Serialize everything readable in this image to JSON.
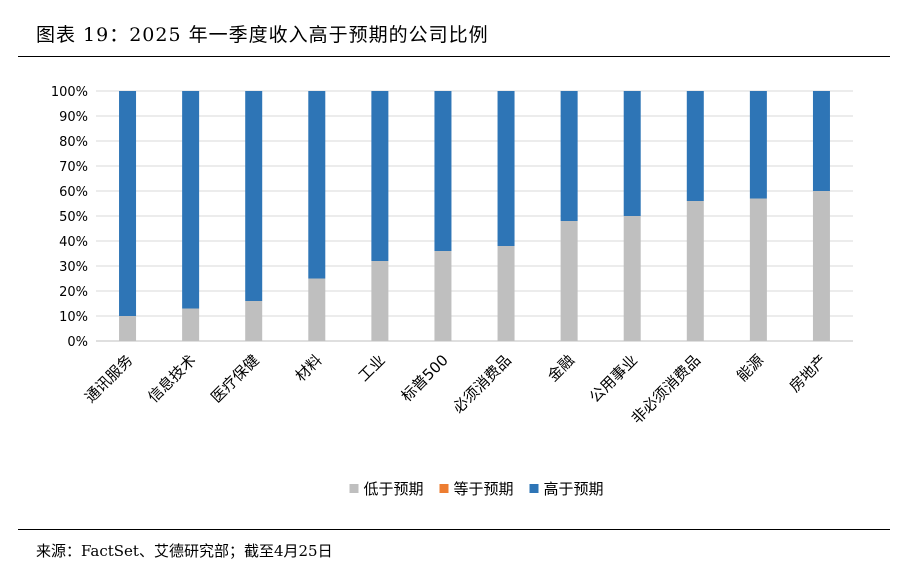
{
  "title": "图表 19：2025 年一季度收入高于预期的公司比例",
  "source": "来源：FactSet、艾德研究部；截至4月25日",
  "chart_data": {
    "type": "bar",
    "stacked": true,
    "percent_stacked": true,
    "categories": [
      "通讯服务",
      "信息技术",
      "医疗保健",
      "材料",
      "工业",
      "标普500",
      "必须消费品",
      "金融",
      "公用事业",
      "非必须消费品",
      "能源",
      "房地产"
    ],
    "series": [
      {
        "name": "低于预期",
        "color": "#bfbfbf",
        "values": [
          10,
          13,
          16,
          25,
          32,
          36,
          38,
          48,
          50,
          56,
          57,
          60
        ]
      },
      {
        "name": "等于预期",
        "color": "#ed7d31",
        "values": [
          0,
          0,
          0,
          0,
          0,
          0,
          0,
          0,
          0,
          0,
          0,
          0
        ]
      },
      {
        "name": "高于预期",
        "color": "#2e75b6",
        "values": [
          90,
          87,
          84,
          75,
          68,
          64,
          62,
          52,
          50,
          44,
          43,
          40
        ]
      }
    ],
    "ylim": [
      0,
      100
    ],
    "yticks": [
      "0%",
      "10%",
      "20%",
      "30%",
      "40%",
      "50%",
      "60%",
      "70%",
      "80%",
      "90%",
      "100%"
    ],
    "grid": true,
    "legend_position": "bottom",
    "xlabel": "",
    "ylabel": ""
  }
}
